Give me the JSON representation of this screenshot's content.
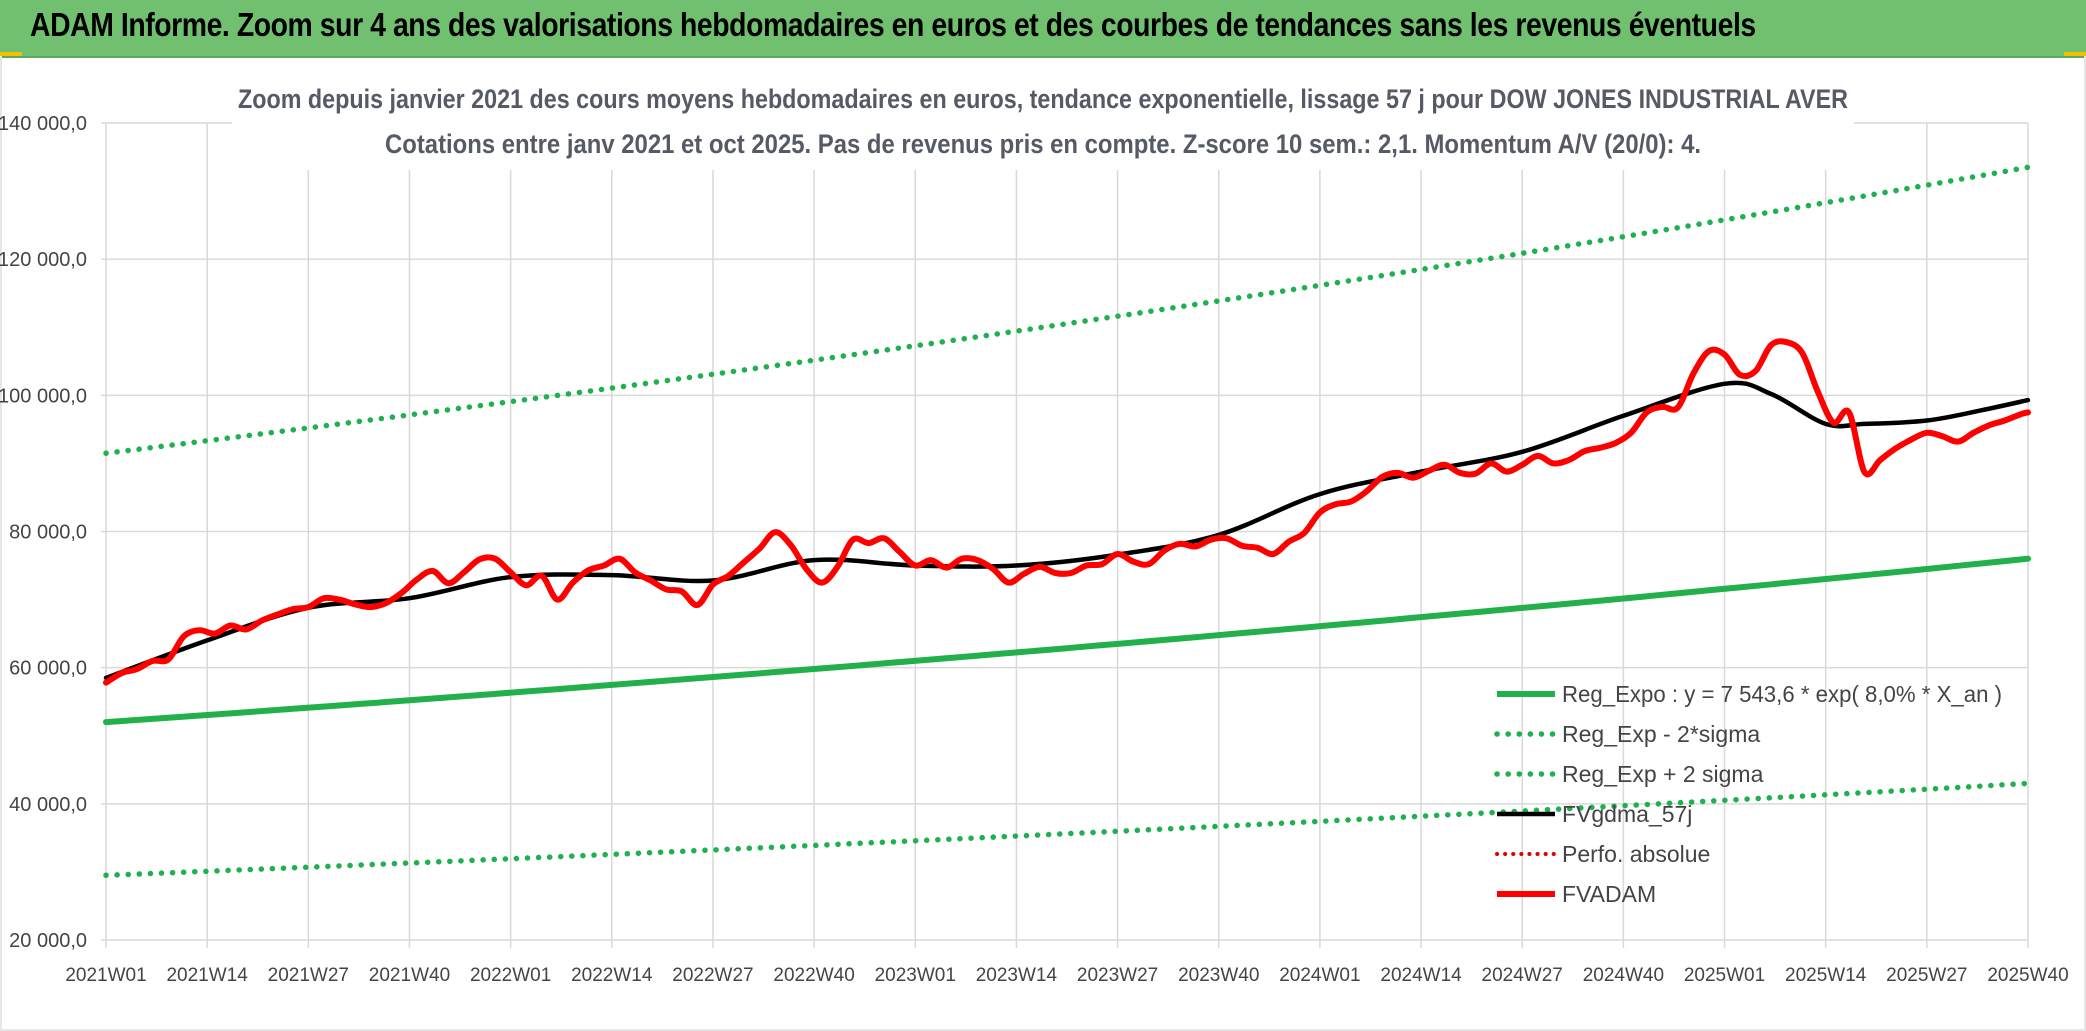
{
  "header": {
    "title": "ADAM Informe. Zoom sur 4 ans des valorisations hebdomadaires en euros et des courbes de tendances sans les revenus éventuels"
  },
  "colors": {
    "banner": "#70c070",
    "reg_green": "#22b04a",
    "dotted_green": "#1fb050",
    "fvgdma_black": "#000000",
    "perfo_red_dotted": "#e00000",
    "fvadam_red": "#ff0000",
    "grid": "#d9d9d9"
  },
  "chart_data": {
    "type": "line",
    "title_line1": "Zoom depuis janvier 2021 des cours moyens hebdomadaires en euros, tendance exponentielle, lissage 57 j pour DOW JONES INDUSTRIAL AVER",
    "title_line2": "Cotations entre janv 2021 et oct 2025. Pas de revenus pris en compte. Z-score 10 sem.: 2,1. Momentum A/V (20/0): 4.",
    "ylim": [
      20000,
      140000
    ],
    "yticks": [
      20000,
      40000,
      60000,
      80000,
      100000,
      120000,
      140000
    ],
    "ytick_labels": [
      "20 000,0",
      "40 000,0",
      "60 000,0",
      "80 000,0",
      "100 000,0",
      "120 000,0",
      "140 000,0"
    ],
    "x_labels": [
      "2021W01",
      "2021W14",
      "2021W27",
      "2021W40",
      "2022W01",
      "2022W14",
      "2022W27",
      "2022W40",
      "2023W01",
      "2023W14",
      "2023W27",
      "2023W40",
      "2024W01",
      "2024W14",
      "2024W27",
      "2024W40",
      "2025W01",
      "2025W14",
      "2025W27",
      "2025W40"
    ],
    "x_range_weeks": [
      0,
      247
    ],
    "legend": [
      {
        "key": "reg",
        "label": "Reg_Expo : y = 7 543,6 * exp( 8,0% *  X_an )"
      },
      {
        "key": "lower",
        "label": "Reg_Exp - 2*sigma"
      },
      {
        "key": "upper",
        "label": "Reg_Exp + 2 sigma"
      },
      {
        "key": "fvgdma",
        "label": "FVgdma_57j"
      },
      {
        "key": "perfo",
        "label": "Perfo. absolue"
      },
      {
        "key": "fvadam",
        "label": "FVADAM"
      }
    ],
    "series": [
      {
        "name": "Reg_Expo",
        "key": "reg",
        "style": "solid",
        "x": [
          0,
          247
        ],
        "values": [
          52000,
          76000
        ],
        "exponential": true
      },
      {
        "name": "Reg_Exp + 2 sigma",
        "key": "upper",
        "style": "dotted",
        "x": [
          0,
          247
        ],
        "values": [
          91500,
          133500
        ],
        "exponential": true
      },
      {
        "name": "Reg_Exp - 2*sigma",
        "key": "lower",
        "style": "dotted",
        "x": [
          0,
          247
        ],
        "values": [
          29500,
          43000
        ],
        "exponential": true
      },
      {
        "name": "FVgdma_57j",
        "key": "fvgdma",
        "style": "solid",
        "x": [
          0,
          13,
          26,
          39,
          52,
          65,
          78,
          91,
          104,
          117,
          130,
          143,
          156,
          169,
          182,
          195,
          208,
          214,
          221,
          226,
          234,
          241,
          247
        ],
        "values": [
          58500,
          64000,
          68800,
          70200,
          73300,
          73600,
          72800,
          75800,
          75000,
          75000,
          76600,
          79500,
          85500,
          88800,
          91700,
          97000,
          101700,
          100200,
          95800,
          95800,
          96300,
          97800,
          99300
        ]
      },
      {
        "name": "FVADAM",
        "key": "fvadam",
        "style": "solid",
        "x": [
          0,
          2,
          4,
          6,
          8,
          10,
          12,
          14,
          16,
          18,
          20,
          22,
          24,
          26,
          28,
          30,
          32,
          34,
          36,
          38,
          40,
          42,
          44,
          46,
          48,
          50,
          52,
          54,
          56,
          58,
          60,
          62,
          64,
          66,
          68,
          70,
          72,
          74,
          76,
          78,
          80,
          82,
          84,
          86,
          88,
          90,
          92,
          94,
          96,
          98,
          100,
          102,
          104,
          106,
          108,
          110,
          112,
          114,
          116,
          118,
          120,
          122,
          124,
          126,
          128,
          130,
          132,
          134,
          136,
          138,
          140,
          142,
          144,
          146,
          148,
          150,
          152,
          154,
          156,
          158,
          160,
          162,
          164,
          166,
          168,
          170,
          172,
          174,
          176,
          178,
          180,
          182,
          184,
          186,
          188,
          190,
          192,
          194,
          196,
          198,
          200,
          202,
          204,
          206,
          208,
          210,
          212,
          214,
          216,
          218,
          220,
          222,
          224,
          226,
          228,
          230,
          232,
          234,
          236,
          238,
          240,
          242,
          244,
          246,
          247
        ],
        "values": [
          57800,
          59200,
          59800,
          61000,
          61200,
          64600,
          65500,
          65000,
          66200,
          65600,
          66900,
          67800,
          68600,
          68900,
          70200,
          70000,
          69300,
          68900,
          69500,
          71000,
          73000,
          74200,
          72400,
          74000,
          75900,
          76000,
          74000,
          72100,
          73500,
          70000,
          72500,
          74300,
          75000,
          76000,
          74000,
          72800,
          71500,
          71200,
          69200,
          72200,
          73500,
          75500,
          77500,
          79900,
          78000,
          74500,
          72500,
          74800,
          78800,
          78300,
          79000,
          77000,
          75000,
          75800,
          74700,
          76000,
          75800,
          74500,
          72500,
          73800,
          74800,
          73900,
          73900,
          75000,
          75200,
          76700,
          75600,
          75200,
          77200,
          78200,
          77800,
          78800,
          79000,
          77900,
          77600,
          76700,
          78500,
          79800,
          82800,
          84000,
          84400,
          85900,
          88000,
          88600,
          87900,
          88900,
          89800,
          88600,
          88500,
          90000,
          88800,
          89800,
          91100,
          90000,
          90500,
          91800,
          92300,
          93000,
          94500,
          97500,
          98300,
          98200,
          103200,
          106500,
          106000,
          103000,
          103600,
          107400,
          107800,
          106200,
          100500,
          96000,
          97500,
          88700,
          90500,
          92200,
          93500,
          94500,
          94000,
          93200,
          94500,
          95600,
          96300,
          97200,
          97500
        ]
      },
      {
        "name": "Perfo. absolue",
        "key": "perfo",
        "style": "dotted",
        "x": [],
        "values": []
      }
    ]
  }
}
